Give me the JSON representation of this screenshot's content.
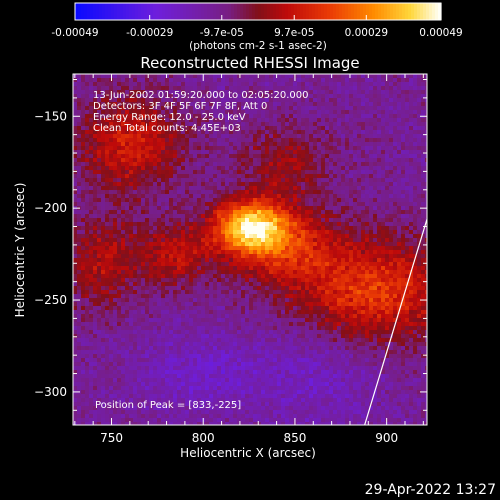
{
  "chart_data": {
    "type": "heatmap",
    "title": "Reconstructed RHESSI Image",
    "xlabel": "Heliocentric X (arcsec)",
    "ylabel": "Heliocentric Y (arcsec)",
    "xlim": [
      729,
      922
    ],
    "ylim": [
      -318,
      -127
    ],
    "xticks": [
      750,
      800,
      850,
      900
    ],
    "yticks": [
      -150,
      -200,
      -250,
      -300
    ],
    "colorbar": {
      "min": -0.00049,
      "max": 0.00049,
      "ticks": [
        -0.00049,
        -0.00029,
        -9.7e-05,
        9.7e-05,
        0.00029,
        0.00049
      ],
      "tick_labels": [
        "-0.00049",
        "-0.00029",
        "-9.7e-05",
        "9.7e-05",
        "0.00029",
        "0.00049"
      ],
      "units_label": "(photons cm-2 s-1 asec-2)"
    },
    "annotations": [
      "13-Jun-2002 01:59:20.000 to 02:05:20.000",
      "Detectors: 3F 4F 5F 6F 7F 8F, Att 0",
      "Energy Range: 12.0 - 25.0 keV",
      "Clean    Total counts: 4.45E+03"
    ],
    "peak_label": "Position of Peak = [833,-225]",
    "peak": [
      833,
      -225
    ],
    "sources": [
      {
        "x": 825,
        "y": -210,
        "sx": 14,
        "sy": 10,
        "amp": 0.00049
      },
      {
        "x": 843,
        "y": -220,
        "sx": 20,
        "sy": 15,
        "amp": 0.00024
      },
      {
        "x": 893,
        "y": -245,
        "sx": 30,
        "sy": 20,
        "amp": 0.0003
      },
      {
        "x": 760,
        "y": -165,
        "sx": 20,
        "sy": 18,
        "amp": 0.00024
      },
      {
        "x": 745,
        "y": -230,
        "sx": 14,
        "sy": 18,
        "amp": 0.00018
      },
      {
        "x": 785,
        "y": -225,
        "sx": 14,
        "sy": 12,
        "amp": 0.0002
      },
      {
        "x": 845,
        "y": -175,
        "sx": 18,
        "sy": 14,
        "amp": 0.00014
      },
      {
        "x": 800,
        "y": -290,
        "sx": 25,
        "sy": 15,
        "amp": -0.0001
      },
      {
        "x": 865,
        "y": -290,
        "sx": 25,
        "sy": 20,
        "amp": -9e-05
      }
    ],
    "background": -0.00012,
    "limb_line": {
      "x": [
        922,
        888
      ],
      "y": [
        -206,
        -318
      ]
    }
  },
  "footer": {
    "date": "29-Apr-2022 13:27"
  }
}
